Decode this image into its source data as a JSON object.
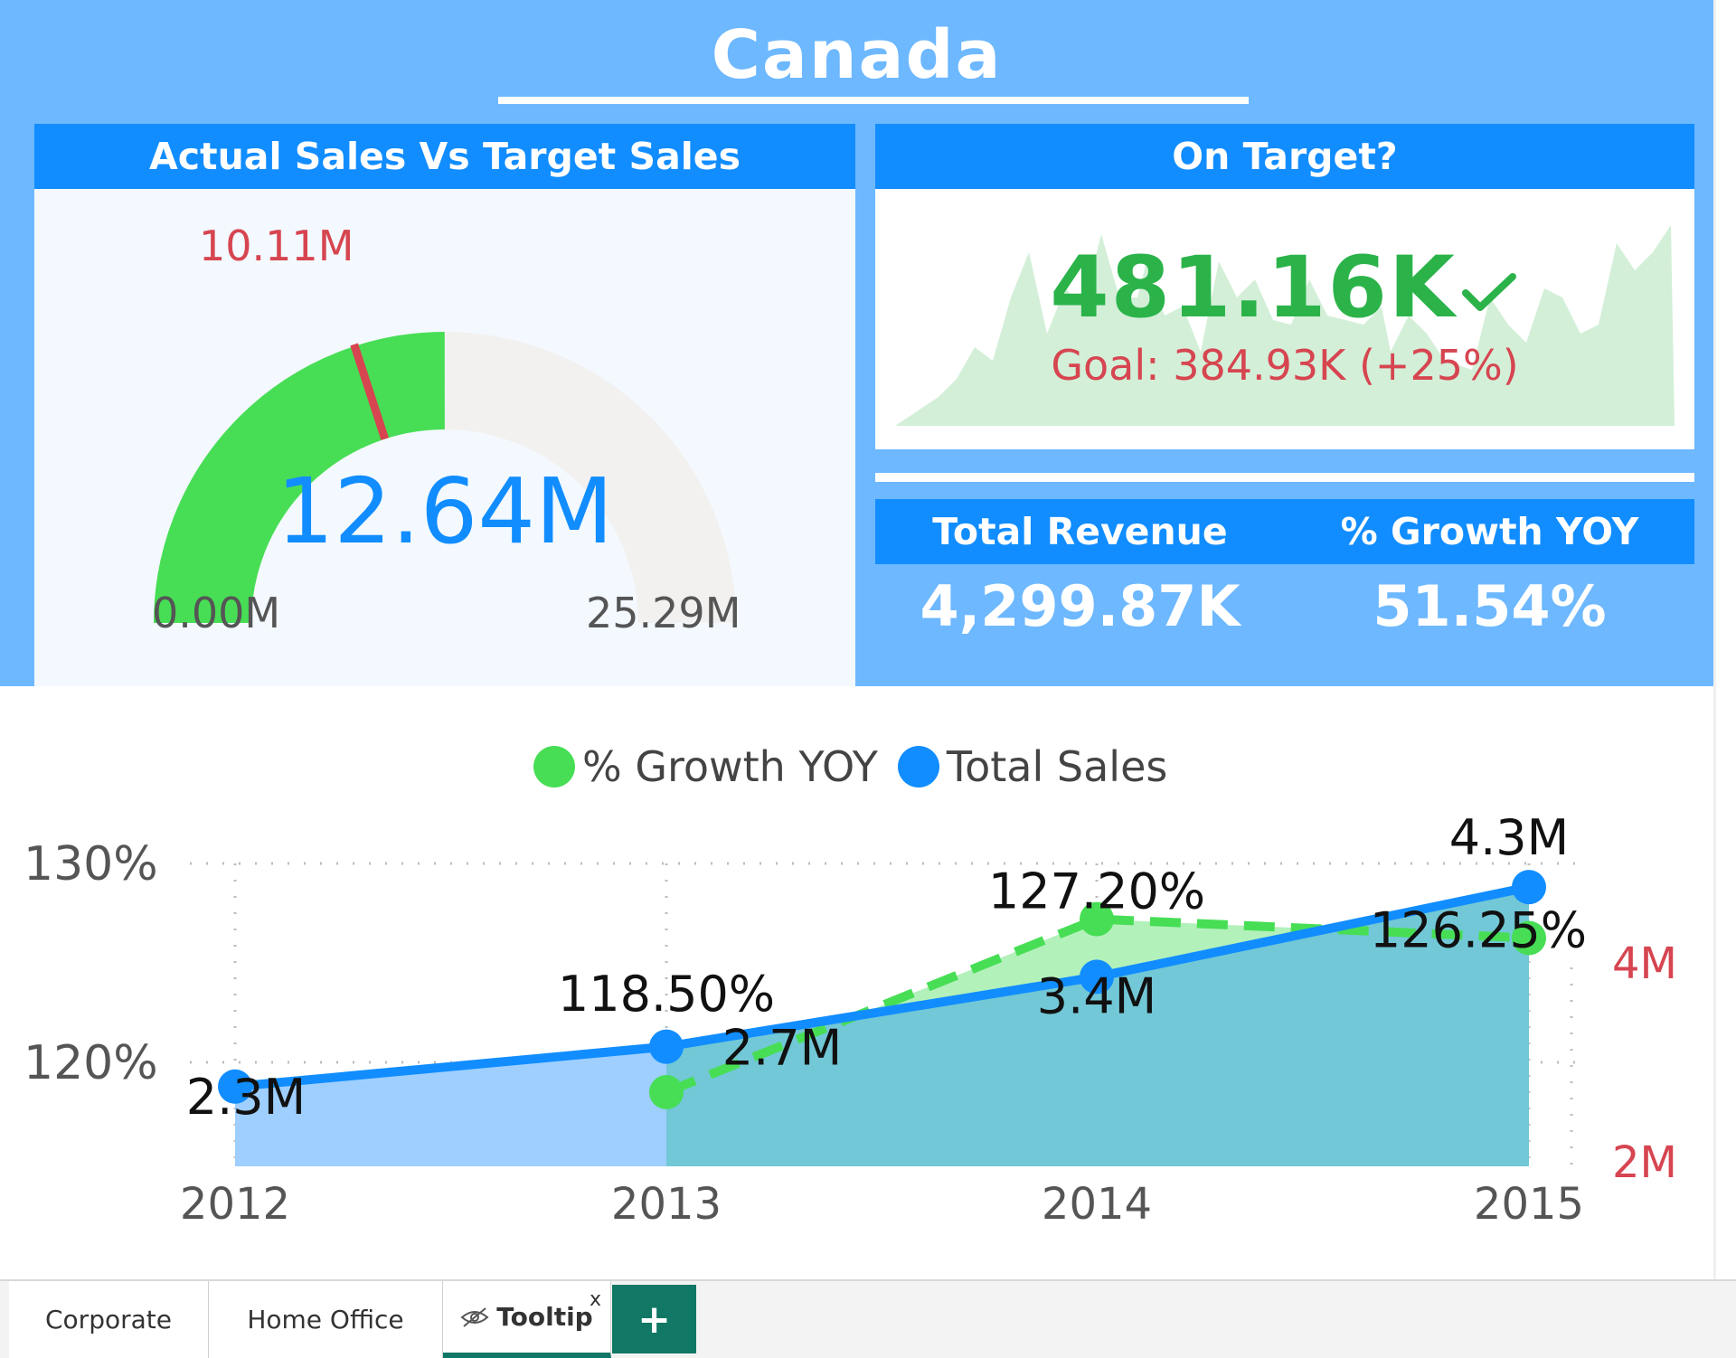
{
  "page": {
    "title": "Canada"
  },
  "gauge": {
    "header": "Actual Sales Vs Target Sales",
    "value": "12.64M",
    "target_label": "10.11M",
    "min_label": "0.00M",
    "max_label": "25.29M",
    "value_num": 12.64,
    "target_num": 10.11,
    "min_num": 0,
    "max_num": 25.29,
    "colors": {
      "fill": "#47de55",
      "track": "#f2f1f0",
      "target": "#d64550",
      "value_text": "#118dff"
    }
  },
  "on_target": {
    "header": "On Target?",
    "value": "481.16K",
    "check_icon": "check-icon",
    "goal": "Goal: 384.93K (+25%)",
    "colors": {
      "value": "#2bb34a",
      "goal": "#d64550",
      "trend": "#d3efd8"
    }
  },
  "kpis": {
    "total_revenue": {
      "label": "Total Revenue",
      "value": "4,299.87K"
    },
    "growth_yoy": {
      "label": "% Growth YOY",
      "value": "51.54%"
    }
  },
  "chart_data": {
    "type": "line",
    "categories": [
      "2012",
      "2013",
      "2014",
      "2015"
    ],
    "legend": [
      "% Growth YOY",
      "Total Sales"
    ],
    "legend_position": "top-center",
    "y_left": {
      "ticks": [
        "130%",
        "120%"
      ],
      "range": [
        115,
        130
      ]
    },
    "y_right": {
      "ticks": [
        "4M",
        "2M"
      ],
      "range": [
        1.5,
        4.5
      ]
    },
    "grid": true,
    "series": [
      {
        "name": "% Growth YOY",
        "axis": "left",
        "style": "dashed-area",
        "color": "#47de55",
        "values": [
          null,
          118.5,
          127.2,
          126.25
        ],
        "labels": [
          "",
          "118.50%",
          "127.20%",
          "126.25%"
        ]
      },
      {
        "name": "Total Sales",
        "axis": "right",
        "style": "solid-area",
        "color": "#118dff",
        "values": [
          2.3,
          2.7,
          3.4,
          4.3
        ],
        "labels": [
          "2.3M",
          "2.7M",
          "3.4M",
          "4.3M"
        ]
      }
    ]
  },
  "tabs": {
    "items": [
      "Corporate",
      "Home Office",
      "Tooltip"
    ],
    "active": "Tooltip",
    "close_label": "x",
    "add_label": "+"
  }
}
